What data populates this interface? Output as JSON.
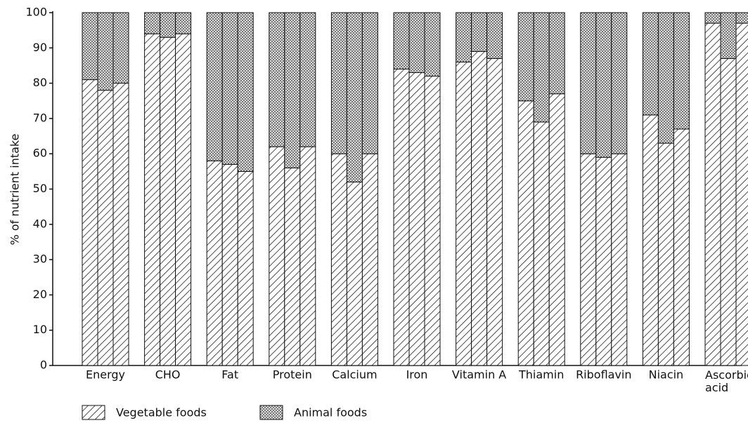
{
  "chart_data": {
    "type": "grouped-stacked-bar",
    "y_label": "% of nutrient intake",
    "categories": [
      "Energy",
      "CHO",
      "Fat",
      "Protein",
      "Calcium",
      "Iron",
      "Vitamin A",
      "Thiamin",
      "Riboflavin",
      "Niacin",
      "Ascorbic acid"
    ],
    "series": [
      {
        "name": "Vegetable foods",
        "color": "#222222",
        "pattern": "hatch",
        "values": [
          [
            81,
            78,
            80
          ],
          [
            94,
            93,
            94
          ],
          [
            58,
            57,
            55
          ],
          [
            62,
            56,
            62
          ],
          [
            60,
            52,
            60
          ],
          [
            84,
            83,
            82
          ],
          [
            86,
            89,
            87
          ],
          [
            75,
            69,
            77
          ],
          [
            60,
            59,
            60
          ],
          [
            71,
            63,
            67
          ],
          [
            97,
            87,
            97
          ]
        ]
      },
      {
        "name": "Animal foods",
        "color": "#777777",
        "pattern": "crosshatch",
        "values": [
          [
            19,
            22,
            20
          ],
          [
            6,
            7,
            6
          ],
          [
            42,
            43,
            45
          ],
          [
            38,
            44,
            38
          ],
          [
            40,
            48,
            40
          ],
          [
            16,
            17,
            18
          ],
          [
            14,
            11,
            13
          ],
          [
            25,
            31,
            23
          ],
          [
            40,
            41,
            40
          ],
          [
            29,
            37,
            33
          ],
          [
            3,
            13,
            3
          ]
        ]
      }
    ],
    "ylim": [
      0,
      100
    ],
    "yticks": [
      0,
      10,
      20,
      30,
      40,
      50,
      60,
      70,
      80,
      90,
      100
    ]
  }
}
